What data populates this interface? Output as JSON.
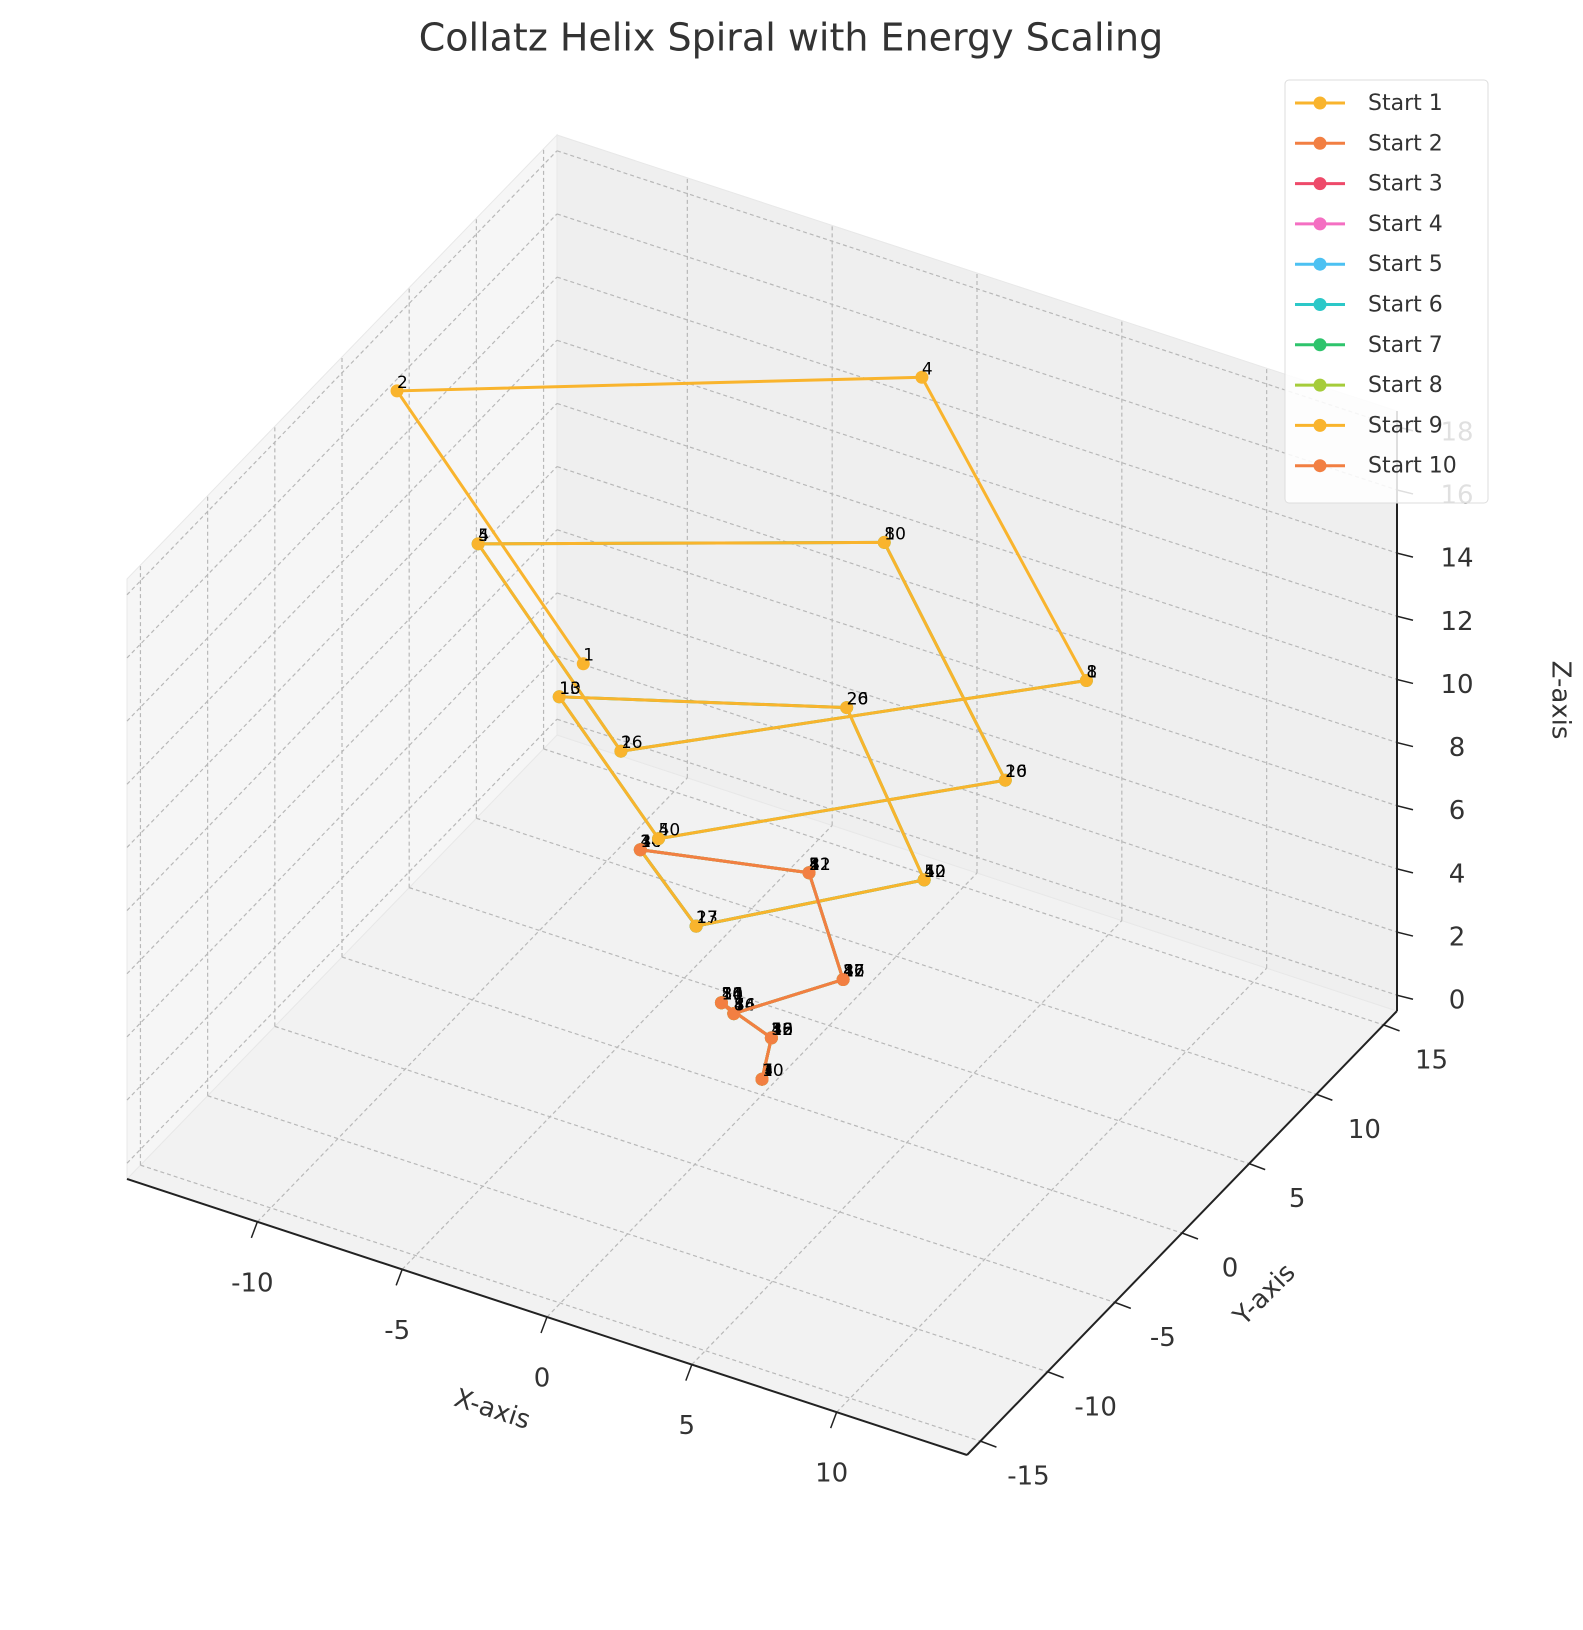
{
  "chart_data": {
    "type": "line3d",
    "title": "Collatz Helix Spiral with Energy Scaling",
    "xlabel": "X-axis",
    "ylabel": "Y-axis",
    "zlabel": "Z-axis",
    "xlim": [
      -14.5,
      14.5
    ],
    "ylim": [
      -16,
      16
    ],
    "zlim": [
      -0.5,
      18.5
    ],
    "xticks": [
      -10,
      -5,
      0,
      5,
      10
    ],
    "yticks": [
      -15,
      -10,
      -5,
      0,
      5,
      10,
      15
    ],
    "zticks": [
      0,
      2,
      4,
      6,
      8,
      10,
      12,
      14,
      16,
      18
    ],
    "grid": true,
    "legend": "upper right",
    "series": [
      {
        "name": "Start 1",
        "color": "#f9b42d",
        "x": [
          0
        ],
        "y": [
          0
        ],
        "z": [
          0
        ],
        "labels": [
          1
        ]
      },
      {
        "name": "Start 2",
        "color": "#f27f42",
        "x": [
          0,
          0
        ],
        "y": [
          0,
          0.7
        ],
        "z": [
          0,
          1
        ],
        "labels": [
          2,
          1
        ]
      },
      {
        "name": "Start 3",
        "color": "#ee4a6a",
        "x": [
          0,
          0,
          -1.4,
          0,
          2.8,
          0,
          -4.2,
          0
        ],
        "y": [
          0,
          0.7,
          0,
          -2.1,
          0,
          3.5,
          0,
          -4.9
        ],
        "z": [
          0,
          1,
          2,
          3,
          4,
          5,
          6,
          7
        ],
        "labels": [
          3,
          10,
          5,
          16,
          8,
          4,
          2,
          1
        ]
      },
      {
        "name": "Start 4",
        "color": "#f46fc2",
        "x": [
          0,
          0,
          -1.4
        ],
        "y": [
          0,
          0.7,
          0
        ],
        "z": [
          0,
          1,
          2
        ],
        "labels": [
          4,
          2,
          1
        ]
      },
      {
        "name": "Start 5",
        "color": "#4cc1f2",
        "x": [
          0,
          0,
          -1.4,
          0,
          2.8,
          0
        ],
        "y": [
          0,
          0.7,
          0,
          -2.1,
          0,
          3.5
        ],
        "z": [
          0,
          1,
          2,
          3,
          4,
          5
        ],
        "labels": [
          5,
          16,
          8,
          4,
          2,
          1
        ]
      },
      {
        "name": "Start 6",
        "color": "#2cc8c8",
        "x": [
          0,
          0,
          -1.4,
          0,
          2.8,
          0,
          -4.2,
          0,
          5.6
        ],
        "y": [
          0,
          0.7,
          0,
          -2.1,
          0,
          3.5,
          0,
          -4.9,
          0
        ],
        "z": [
          0,
          1,
          2,
          3,
          4,
          5,
          6,
          7,
          8
        ],
        "labels": [
          6,
          3,
          10,
          5,
          16,
          8,
          4,
          2,
          1
        ]
      },
      {
        "name": "Start 7",
        "color": "#2ec46c",
        "x": [
          0,
          0,
          -1.4,
          0,
          2.8,
          0,
          -4.2,
          0,
          5.6,
          0,
          -7,
          0,
          8.4,
          0,
          -9.8,
          0,
          11.2
        ],
        "y": [
          0,
          0.7,
          0,
          -2.1,
          0,
          3.5,
          0,
          -4.9,
          0,
          6.3,
          0,
          -7.7,
          0,
          9.1,
          0,
          -10.5,
          0
        ],
        "z": [
          0,
          1,
          2,
          3,
          4,
          5,
          6,
          7,
          8,
          9,
          10,
          11,
          12,
          13,
          14,
          15,
          16
        ],
        "labels": [
          7,
          22,
          11,
          34,
          17,
          52,
          26,
          13,
          40,
          20,
          10,
          5,
          16,
          8,
          4,
          2,
          1
        ]
      },
      {
        "name": "Start 8",
        "color": "#a5cc3a",
        "x": [
          0,
          0,
          -1.4,
          0
        ],
        "y": [
          0,
          0.7,
          0,
          -2.1
        ],
        "z": [
          0,
          1,
          2,
          3
        ],
        "labels": [
          8,
          4,
          2,
          1
        ]
      },
      {
        "name": "Start 9",
        "color": "#f9b42d",
        "x": [
          0,
          0,
          -1.4,
          0,
          2.8,
          0,
          -4.2,
          0,
          5.6,
          0,
          -7,
          0,
          8.4,
          0,
          -9.8,
          0,
          11.2,
          0,
          -12.6,
          0
        ],
        "y": [
          0,
          0.7,
          0,
          -2.1,
          0,
          3.5,
          0,
          -4.9,
          0,
          6.3,
          0,
          -7.7,
          0,
          9.1,
          0,
          -10.5,
          0,
          11.9,
          0,
          -13.3
        ],
        "z": [
          0,
          1,
          2,
          3,
          4,
          5,
          6,
          7,
          8,
          9,
          10,
          11,
          12,
          13,
          14,
          15,
          16,
          17,
          18,
          19
        ],
        "labels": [
          9,
          28,
          14,
          7,
          22,
          11,
          34,
          17,
          52,
          26,
          13,
          40,
          20,
          10,
          5,
          16,
          8,
          4,
          2,
          1
        ]
      },
      {
        "name": "Start 10",
        "color": "#f27f42",
        "x": [
          0,
          0,
          -1.4,
          0,
          2.8,
          0,
          -4.2
        ],
        "y": [
          0,
          0.7,
          0,
          -2.1,
          0,
          3.5,
          0
        ],
        "z": [
          0,
          1,
          2,
          3,
          4,
          5,
          6
        ],
        "labels": [
          10,
          5,
          16,
          8,
          4,
          2,
          1
        ]
      }
    ]
  }
}
